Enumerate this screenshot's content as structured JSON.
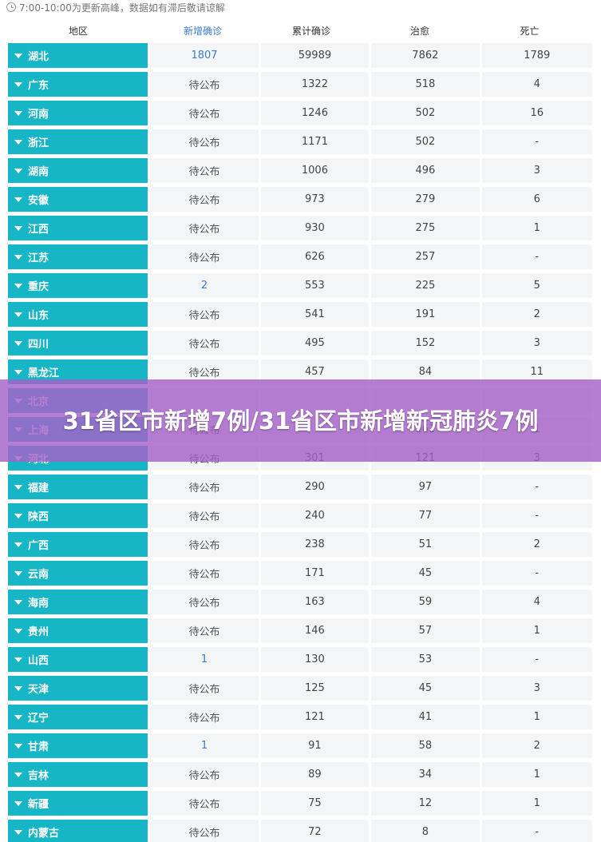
{
  "notice": "7:00-10:00为更新高峰，数据如有滞后敬请谅解",
  "headers": [
    "地区",
    "新增确诊",
    "累计确诊",
    "治愈",
    "死亡"
  ],
  "rows": [
    {
      "region": "湖北",
      "new": "1807",
      "total": "59989",
      "cured": "7862",
      "deaths": "1789"
    },
    {
      "region": "广东",
      "new": "待公布",
      "total": "1322",
      "cured": "518",
      "deaths": "4"
    },
    {
      "region": "河南",
      "new": "待公布",
      "total": "1246",
      "cured": "502",
      "deaths": "16"
    },
    {
      "region": "浙江",
      "new": "待公布",
      "total": "1171",
      "cured": "502",
      "deaths": "-"
    },
    {
      "region": "湖南",
      "new": "待公布",
      "total": "1006",
      "cured": "496",
      "deaths": "3"
    },
    {
      "region": "安徽",
      "new": "待公布",
      "total": "973",
      "cured": "279",
      "deaths": "6"
    },
    {
      "region": "江西",
      "new": "待公布",
      "total": "930",
      "cured": "275",
      "deaths": "1"
    },
    {
      "region": "江苏",
      "new": "待公布",
      "total": "626",
      "cured": "257",
      "deaths": "-"
    },
    {
      "region": "重庆",
      "new": "2",
      "total": "553",
      "cured": "225",
      "deaths": "5"
    },
    {
      "region": "山东",
      "new": "待公布",
      "total": "541",
      "cured": "191",
      "deaths": "2"
    },
    {
      "region": "四川",
      "new": "待公布",
      "total": "495",
      "cured": "152",
      "deaths": "3"
    },
    {
      "region": "黑龙江",
      "new": "待公布",
      "total": "457",
      "cured": "84",
      "deaths": "11"
    },
    {
      "region": "北京",
      "new": "",
      "total": "",
      "cured": "",
      "deaths": ""
    },
    {
      "region": "上海",
      "new": "待公布",
      "total": "",
      "cured": "161",
      "deaths": "1"
    },
    {
      "region": "河北",
      "new": "待公布",
      "total": "301",
      "cured": "121",
      "deaths": "3"
    },
    {
      "region": "福建",
      "new": "待公布",
      "total": "290",
      "cured": "97",
      "deaths": "-"
    },
    {
      "region": "陕西",
      "new": "待公布",
      "total": "240",
      "cured": "77",
      "deaths": "-"
    },
    {
      "region": "广西",
      "new": "待公布",
      "total": "238",
      "cured": "51",
      "deaths": "2"
    },
    {
      "region": "云南",
      "new": "待公布",
      "total": "171",
      "cured": "45",
      "deaths": "-"
    },
    {
      "region": "海南",
      "new": "待公布",
      "total": "163",
      "cured": "59",
      "deaths": "4"
    },
    {
      "region": "贵州",
      "new": "待公布",
      "total": "146",
      "cured": "57",
      "deaths": "1"
    },
    {
      "region": "山西",
      "new": "1",
      "total": "130",
      "cured": "53",
      "deaths": "-"
    },
    {
      "region": "天津",
      "new": "待公布",
      "total": "125",
      "cured": "45",
      "deaths": "3"
    },
    {
      "region": "辽宁",
      "new": "待公布",
      "total": "121",
      "cured": "41",
      "deaths": "1"
    },
    {
      "region": "甘肃",
      "new": "1",
      "total": "91",
      "cured": "58",
      "deaths": "2"
    },
    {
      "region": "吉林",
      "new": "待公布",
      "total": "89",
      "cured": "34",
      "deaths": "1"
    },
    {
      "region": "新疆",
      "new": "待公布",
      "total": "75",
      "cured": "12",
      "deaths": "1"
    },
    {
      "region": "内蒙古",
      "new": "待公布",
      "total": "72",
      "cured": "8",
      "deaths": "-"
    }
  ],
  "banner_title": "31省区市新增7例/31省区市新增新冠肺炎7例",
  "colors": {
    "region_bg": "#17b6c7",
    "new_blue": "#3a7bd5",
    "cell_bg": "#f3f5f7",
    "banner": "#a662c8"
  },
  "icons": {
    "notice": "clock-icon",
    "expand": "caret-down-icon"
  }
}
